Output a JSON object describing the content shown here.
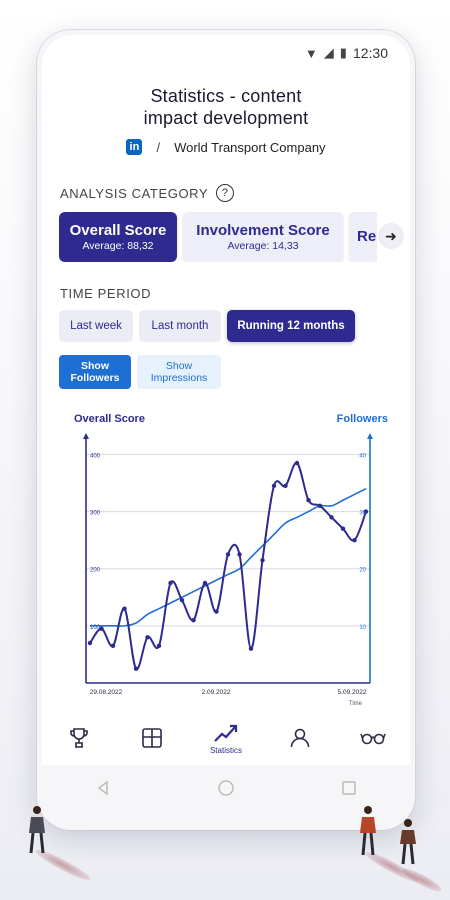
{
  "status_bar": {
    "time": "12:30"
  },
  "header": {
    "title_line1": "Statistics - content",
    "title_line2": "impact development",
    "network_badge": "in",
    "separator": "/",
    "company": "World Transport Company"
  },
  "analysis": {
    "label": "ANALYSIS CATEGORY",
    "help": "?",
    "categories": [
      {
        "title": "Overall Score",
        "subtitle": "Average: 88,32",
        "active": true
      },
      {
        "title": "Involvement Score",
        "subtitle": "Average: 14,33",
        "active": false
      },
      {
        "title": "Re",
        "subtitle": "",
        "active": false
      }
    ],
    "next_icon": "arrow-right-icon"
  },
  "time_period": {
    "label": "TIME PERIOD",
    "options": [
      "Last week",
      "Last month",
      "Running 12 months"
    ],
    "selected": "Running 12 months"
  },
  "toggles": {
    "followers_line1": "Show",
    "followers_line2": "Followers",
    "followers_on": true,
    "impressions_line1": "Show",
    "impressions_line2": "Impressions",
    "impressions_on": false
  },
  "chart_data": {
    "type": "line",
    "left_axis_label": "Overall Score",
    "right_axis_label": "Followers",
    "left_ticks": [
      "400",
      "300",
      "200",
      "100"
    ],
    "right_ticks": [
      "40",
      "30",
      "20",
      "10"
    ],
    "x_ticks": [
      "29.08.2022",
      "2.09.2022",
      "5.09.2022"
    ],
    "footnote": "Time",
    "ylim_left": [
      0,
      420
    ],
    "ylim_right": [
      0,
      42
    ],
    "series": [
      {
        "axis": "left",
        "color": "#2e2a8f",
        "x": [
          0,
          1,
          2,
          3,
          4,
          5,
          6,
          7,
          8,
          9,
          10,
          11,
          12,
          13,
          14,
          15,
          16,
          17,
          18,
          19,
          20,
          21,
          22,
          23,
          24
        ],
        "values": [
          70,
          95,
          65,
          130,
          25,
          80,
          65,
          175,
          145,
          110,
          175,
          125,
          225,
          225,
          60,
          215,
          345,
          345,
          385,
          320,
          310,
          290,
          270,
          250,
          300
        ]
      },
      {
        "axis": "right",
        "color": "#1e6fd4",
        "x": [
          0,
          1,
          2,
          3,
          4,
          5,
          6,
          7,
          8,
          9,
          10,
          11,
          12,
          13,
          14,
          15,
          16,
          17,
          18,
          19,
          20,
          21,
          22,
          23,
          24
        ],
        "values": [
          10,
          10,
          10,
          10,
          10.5,
          12,
          13,
          14,
          15,
          16,
          17,
          18,
          19,
          20,
          22,
          24,
          26,
          28,
          29,
          30,
          31,
          31,
          32,
          33,
          34
        ]
      }
    ]
  },
  "navbar": {
    "items": [
      {
        "icon": "trophy-icon",
        "label": ""
      },
      {
        "icon": "grid-icon",
        "label": ""
      },
      {
        "icon": "trend-up-icon",
        "label": "Statistics"
      },
      {
        "icon": "person-icon",
        "label": ""
      },
      {
        "icon": "glasses-icon",
        "label": ""
      }
    ]
  },
  "colors": {
    "primary": "#2e2a8f",
    "accent": "#1e6fd4",
    "linkedin": "#0a66c2"
  }
}
